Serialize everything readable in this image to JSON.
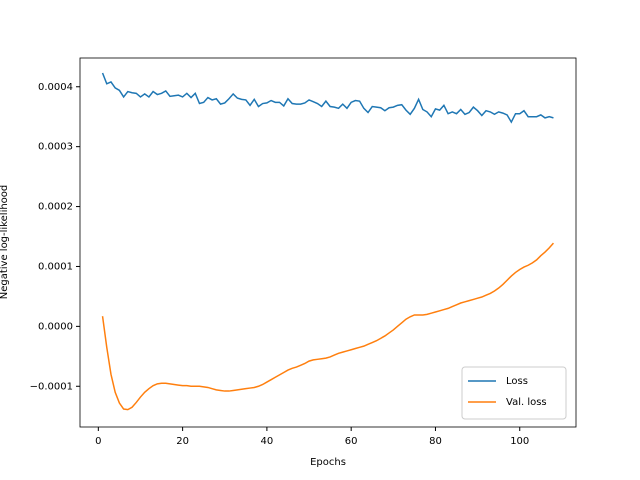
{
  "chart_data": {
    "type": "line",
    "xlabel": "Epochs",
    "ylabel": "Negative log-likelihood",
    "x": [
      1,
      2,
      3,
      4,
      5,
      6,
      7,
      8,
      9,
      10,
      11,
      12,
      13,
      14,
      15,
      16,
      17,
      18,
      19,
      20,
      21,
      22,
      23,
      24,
      25,
      26,
      27,
      28,
      29,
      30,
      31,
      32,
      33,
      34,
      35,
      36,
      37,
      38,
      39,
      40,
      41,
      42,
      43,
      44,
      45,
      46,
      47,
      48,
      49,
      50,
      51,
      52,
      53,
      54,
      55,
      56,
      57,
      58,
      59,
      60,
      61,
      62,
      63,
      64,
      65,
      66,
      67,
      68,
      69,
      70,
      71,
      72,
      73,
      74,
      75,
      76,
      77,
      78,
      79,
      80,
      81,
      82,
      83,
      84,
      85,
      86,
      87,
      88,
      89,
      90,
      91,
      92,
      93,
      94,
      95,
      96,
      97,
      98,
      99,
      100,
      101,
      102,
      103,
      104,
      105,
      106,
      107,
      108
    ],
    "series": [
      {
        "name": "Loss",
        "color": "#1f77b4",
        "values": [
          0.000423,
          0.000405,
          0.000408,
          0.000398,
          0.000394,
          0.000383,
          0.000392,
          0.00039,
          0.000389,
          0.000383,
          0.000388,
          0.000383,
          0.000392,
          0.000387,
          0.000389,
          0.000393,
          0.000384,
          0.000385,
          0.000386,
          0.000383,
          0.000389,
          0.000382,
          0.000389,
          0.000372,
          0.000374,
          0.000382,
          0.000378,
          0.00038,
          0.000371,
          0.000373,
          0.00038,
          0.000388,
          0.000381,
          0.000379,
          0.000378,
          0.000369,
          0.000379,
          0.000367,
          0.000372,
          0.000373,
          0.000377,
          0.000374,
          0.000374,
          0.000368,
          0.00038,
          0.000372,
          0.000371,
          0.000371,
          0.000373,
          0.000378,
          0.000375,
          0.000372,
          0.000367,
          0.000376,
          0.000367,
          0.000366,
          0.000364,
          0.000371,
          0.000364,
          0.000374,
          0.000377,
          0.000376,
          0.000364,
          0.000357,
          0.000367,
          0.000366,
          0.000365,
          0.00036,
          0.000365,
          0.000366,
          0.000369,
          0.00037,
          0.000361,
          0.000354,
          0.000364,
          0.000379,
          0.000362,
          0.000358,
          0.00035,
          0.000363,
          0.000361,
          0.000369,
          0.000355,
          0.000358,
          0.000355,
          0.000362,
          0.000354,
          0.000357,
          0.000366,
          0.00036,
          0.000352,
          0.00036,
          0.000358,
          0.000354,
          0.000358,
          0.000356,
          0.000353,
          0.000341,
          0.000355,
          0.000355,
          0.00036,
          0.00035,
          0.00035,
          0.00035,
          0.000353,
          0.000348,
          0.00035,
          0.000348
        ]
      },
      {
        "name": "Val. loss",
        "color": "#ff7f0e",
        "values": [
          1.7e-05,
          -3.5e-05,
          -8e-05,
          -0.00011,
          -0.000128,
          -0.000138,
          -0.000139,
          -0.000135,
          -0.000127,
          -0.000118,
          -0.00011,
          -0.000104,
          -9.9e-05,
          -9.6e-05,
          -9.5e-05,
          -9.5e-05,
          -9.6e-05,
          -9.7e-05,
          -9.8e-05,
          -9.9e-05,
          -9.9e-05,
          -0.0001,
          -0.0001,
          -0.0001,
          -0.000101,
          -0.000102,
          -0.000104,
          -0.000106,
          -0.000107,
          -0.000108,
          -0.000108,
          -0.000107,
          -0.000106,
          -0.000105,
          -0.000104,
          -0.000103,
          -0.000102,
          -0.0001,
          -9.7e-05,
          -9.3e-05,
          -8.9e-05,
          -8.5e-05,
          -8.1e-05,
          -7.7e-05,
          -7.3e-05,
          -7e-05,
          -6.8e-05,
          -6.5e-05,
          -6.2e-05,
          -5.8e-05,
          -5.6e-05,
          -5.5e-05,
          -5.4e-05,
          -5.3e-05,
          -5.1e-05,
          -4.8e-05,
          -4.5e-05,
          -4.3e-05,
          -4.1e-05,
          -3.9e-05,
          -3.7e-05,
          -3.5e-05,
          -3.3e-05,
          -3e-05,
          -2.7e-05,
          -2.4e-05,
          -2e-05,
          -1.6e-05,
          -1.1e-05,
          -6e-06,
          0,
          6e-06,
          1.2e-05,
          1.6e-05,
          1.9e-05,
          1.9e-05,
          1.9e-05,
          2e-05,
          2.2e-05,
          2.4e-05,
          2.6e-05,
          2.8e-05,
          3e-05,
          3.3e-05,
          3.6e-05,
          3.9e-05,
          4.1e-05,
          4.3e-05,
          4.5e-05,
          4.7e-05,
          4.9e-05,
          5.2e-05,
          5.5e-05,
          5.9e-05,
          6.4e-05,
          7e-05,
          7.7e-05,
          8.4e-05,
          9e-05,
          9.5e-05,
          9.9e-05,
          0.000102,
          0.000106,
          0.000111,
          0.000118,
          0.000124,
          0.000131,
          0.000139
        ]
      }
    ],
    "xlim": [
      -4.35,
      113.35
    ],
    "xticks": [
      0,
      20,
      40,
      60,
      80,
      100
    ],
    "ylim": [
      -0.000168,
      0.000448
    ],
    "yticks": [
      {
        "value": -0.0001,
        "label": "−0.0001"
      },
      {
        "value": 0,
        "label": "0.0000"
      },
      0.0001,
      0.0002,
      0.0003,
      0.0004
    ],
    "legend": "lower right",
    "grid": false
  }
}
